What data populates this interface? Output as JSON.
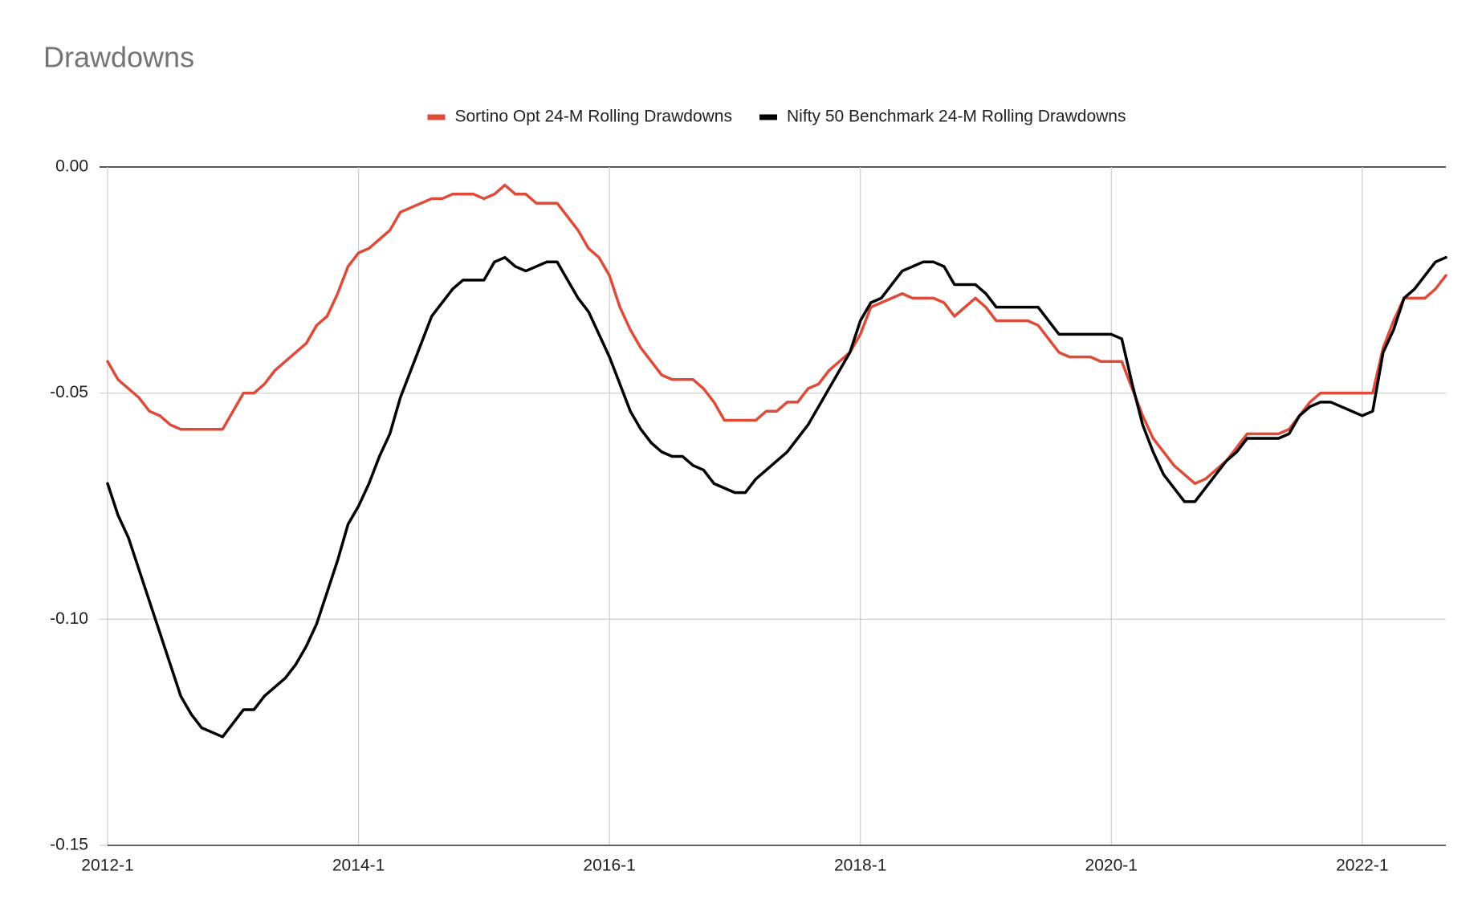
{
  "chart_data": {
    "type": "line",
    "title": "Drawdowns",
    "categories": [
      "2012-1",
      null,
      null,
      null,
      null,
      null,
      null,
      null,
      null,
      null,
      null,
      null,
      null,
      null,
      null,
      null,
      null,
      null,
      null,
      null,
      null,
      null,
      null,
      null,
      "2014-1",
      null,
      null,
      null,
      null,
      null,
      null,
      null,
      null,
      null,
      null,
      null,
      null,
      null,
      null,
      null,
      null,
      null,
      null,
      null,
      null,
      null,
      null,
      null,
      "2016-1",
      null,
      null,
      null,
      null,
      null,
      null,
      null,
      null,
      null,
      null,
      null,
      null,
      null,
      null,
      null,
      null,
      null,
      null,
      null,
      null,
      null,
      null,
      null,
      "2018-1",
      null,
      null,
      null,
      null,
      null,
      null,
      null,
      null,
      null,
      null,
      null,
      null,
      null,
      null,
      null,
      null,
      null,
      null,
      null,
      null,
      null,
      null,
      null,
      "2020-1",
      null,
      null,
      null,
      null,
      null,
      null,
      null,
      null,
      null,
      null,
      null,
      null,
      null,
      null,
      null,
      null,
      null,
      null,
      null,
      null,
      null,
      null,
      null,
      "2022-1",
      null,
      null,
      null,
      null,
      null,
      null,
      null,
      null
    ],
    "series": [
      {
        "name": "Sortino Opt 24-M Rolling Drawdowns",
        "color": "#dd4b39",
        "values": [
          -0.043,
          -0.047,
          -0.049,
          -0.051,
          -0.054,
          -0.055,
          -0.057,
          -0.058,
          -0.058,
          -0.058,
          -0.058,
          -0.058,
          -0.054,
          -0.05,
          -0.05,
          -0.048,
          -0.045,
          -0.043,
          -0.041,
          -0.039,
          -0.035,
          -0.033,
          -0.028,
          -0.022,
          -0.019,
          -0.018,
          -0.016,
          -0.014,
          -0.01,
          -0.009,
          -0.008,
          -0.007,
          -0.007,
          -0.006,
          -0.006,
          -0.006,
          -0.007,
          -0.006,
          -0.004,
          -0.006,
          -0.006,
          -0.008,
          -0.008,
          -0.008,
          -0.011,
          -0.014,
          -0.018,
          -0.02,
          -0.024,
          -0.031,
          -0.036,
          -0.04,
          -0.043,
          -0.046,
          -0.047,
          -0.047,
          -0.047,
          -0.049,
          -0.052,
          -0.056,
          -0.056,
          -0.056,
          -0.056,
          -0.054,
          -0.054,
          -0.052,
          -0.052,
          -0.049,
          -0.048,
          -0.045,
          -0.043,
          -0.041,
          -0.037,
          -0.031,
          -0.03,
          -0.029,
          -0.028,
          -0.029,
          -0.029,
          -0.029,
          -0.03,
          -0.033,
          -0.031,
          -0.029,
          -0.031,
          -0.034,
          -0.034,
          -0.034,
          -0.034,
          -0.035,
          -0.038,
          -0.041,
          -0.042,
          -0.042,
          -0.042,
          -0.043,
          -0.043,
          -0.043,
          -0.049,
          -0.055,
          -0.06,
          -0.063,
          -0.066,
          -0.068,
          -0.07,
          -0.069,
          -0.067,
          -0.065,
          -0.062,
          -0.059,
          -0.059,
          -0.059,
          -0.059,
          -0.058,
          -0.055,
          -0.052,
          -0.05,
          -0.05,
          -0.05,
          -0.05,
          -0.05,
          -0.05,
          -0.04,
          -0.034,
          -0.029,
          -0.029,
          -0.029,
          -0.027,
          -0.024
        ]
      },
      {
        "name": "Nifty 50 Benchmark 24-M Rolling Drawdowns",
        "color": "#000000",
        "values": [
          -0.07,
          -0.077,
          -0.082,
          -0.089,
          -0.096,
          -0.103,
          -0.11,
          -0.117,
          -0.121,
          -0.124,
          -0.125,
          -0.126,
          -0.123,
          -0.12,
          -0.12,
          -0.117,
          -0.115,
          -0.113,
          -0.11,
          -0.106,
          -0.101,
          -0.094,
          -0.087,
          -0.079,
          -0.075,
          -0.07,
          -0.064,
          -0.059,
          -0.051,
          -0.045,
          -0.039,
          -0.033,
          -0.03,
          -0.027,
          -0.025,
          -0.025,
          -0.025,
          -0.021,
          -0.02,
          -0.022,
          -0.023,
          -0.022,
          -0.021,
          -0.021,
          -0.025,
          -0.029,
          -0.032,
          -0.037,
          -0.042,
          -0.048,
          -0.054,
          -0.058,
          -0.061,
          -0.063,
          -0.064,
          -0.064,
          -0.066,
          -0.067,
          -0.07,
          -0.071,
          -0.072,
          -0.072,
          -0.069,
          -0.067,
          -0.065,
          -0.063,
          -0.06,
          -0.057,
          -0.053,
          -0.049,
          -0.045,
          -0.041,
          -0.034,
          -0.03,
          -0.029,
          -0.026,
          -0.023,
          -0.022,
          -0.021,
          -0.021,
          -0.022,
          -0.026,
          -0.026,
          -0.026,
          -0.028,
          -0.031,
          -0.031,
          -0.031,
          -0.031,
          -0.031,
          -0.034,
          -0.037,
          -0.037,
          -0.037,
          -0.037,
          -0.037,
          -0.037,
          -0.038,
          -0.048,
          -0.057,
          -0.063,
          -0.068,
          -0.071,
          -0.074,
          -0.074,
          -0.071,
          -0.068,
          -0.065,
          -0.063,
          -0.06,
          -0.06,
          -0.06,
          -0.06,
          -0.059,
          -0.055,
          -0.053,
          -0.052,
          -0.052,
          -0.053,
          -0.054,
          -0.055,
          -0.054,
          -0.041,
          -0.036,
          -0.029,
          -0.027,
          -0.024,
          -0.021,
          -0.02
        ]
      }
    ],
    "ylim": [
      -0.15,
      0
    ],
    "yticks": [
      {
        "value": -0.15,
        "label": "-0.15"
      },
      {
        "value": -0.1,
        "label": "-0.10"
      },
      {
        "value": -0.05,
        "label": "-0.05"
      },
      {
        "value": 0,
        "label": "0.00"
      }
    ],
    "grid": true,
    "legend": "top"
  }
}
